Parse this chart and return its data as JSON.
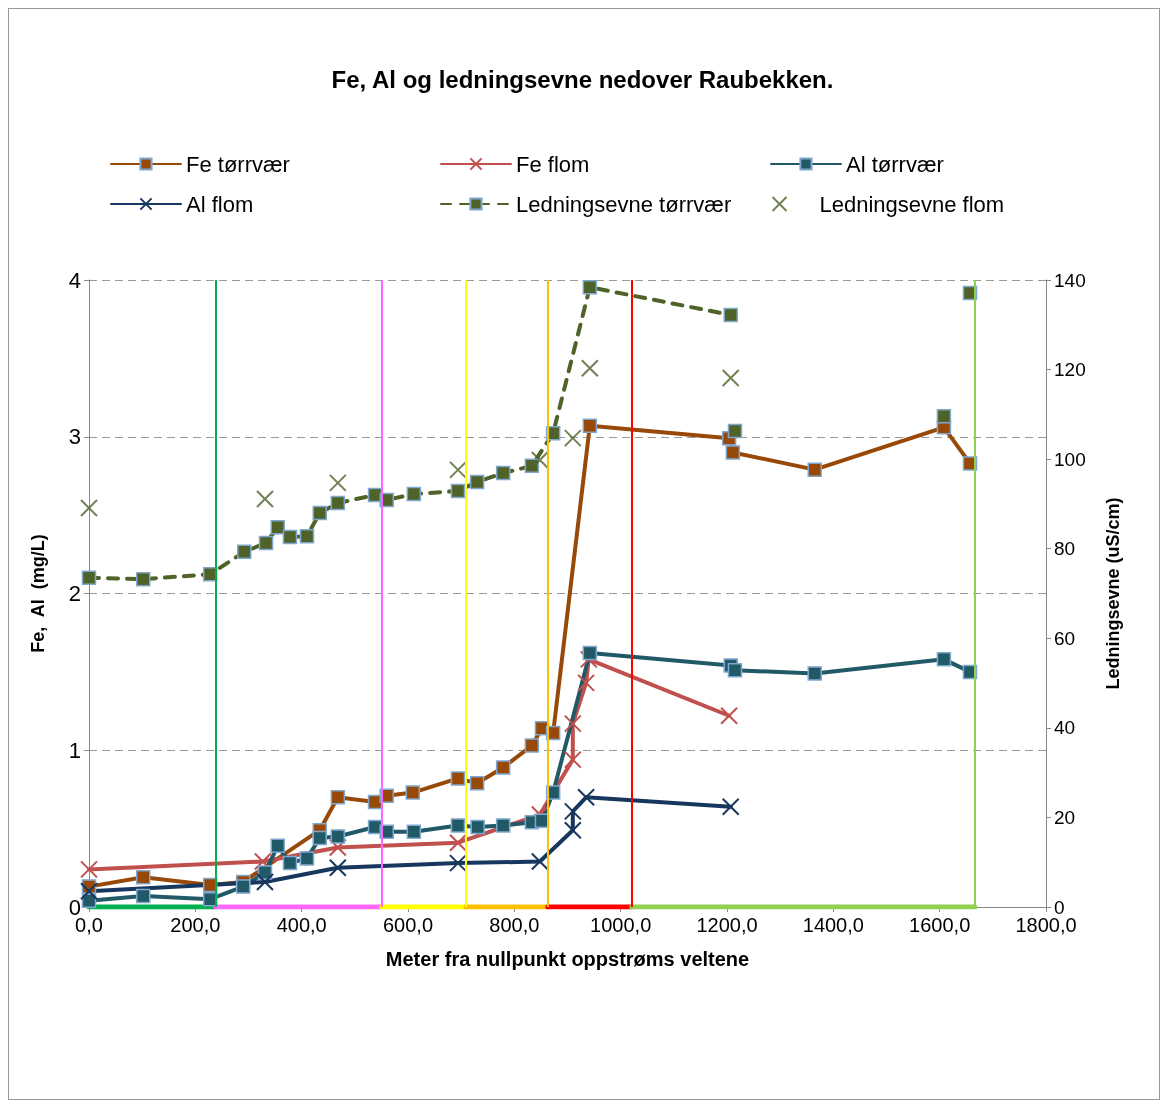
{
  "chart_data": {
    "type": "line",
    "title": "Fe, Al og ledningsevne nedover Raubekken.",
    "xlabel": "Meter fra nullpunkt oppstrøms veltene",
    "ylabel": "Fe,  Al  (mg/L)",
    "y2label": "Ledningsevne (uS/cm)",
    "xlim": [
      0,
      1800
    ],
    "xticks": [
      {
        "value": 0,
        "label": "0,0"
      },
      {
        "value": 200,
        "label": "200,0"
      },
      {
        "value": 400,
        "label": "400,0"
      },
      {
        "value": 600,
        "label": "600,0"
      },
      {
        "value": 800,
        "label": "800,0"
      },
      {
        "value": 1000,
        "label": "1000,0"
      },
      {
        "value": 1200,
        "label": "1200,0"
      },
      {
        "value": 1400,
        "label": "1400,0"
      },
      {
        "value": 1600,
        "label": "1600,0"
      },
      {
        "value": 1800,
        "label": "1800,0"
      }
    ],
    "ylim": [
      0,
      4
    ],
    "yticks": [
      0,
      1,
      2,
      3,
      4
    ],
    "y2lim": [
      0,
      140
    ],
    "y2ticks": [
      0,
      20,
      40,
      60,
      80,
      100,
      120,
      140
    ],
    "grid": "y",
    "legend": "top",
    "series": [
      {
        "name": "Fe tørrvær",
        "color": "#984807",
        "marker": "square",
        "line_style": "solid",
        "x": [
          0,
          102,
          228,
          290,
          434,
          468,
          538,
          560,
          609,
          694,
          730,
          779,
          833,
          852,
          873,
          942,
          1204,
          1211,
          1365,
          1608,
          1657
        ],
        "values": [
          0.13,
          0.19,
          0.14,
          0.16,
          0.49,
          0.7,
          0.67,
          0.71,
          0.73,
          0.82,
          0.79,
          0.89,
          1.03,
          1.14,
          1.11,
          3.07,
          2.99,
          2.9,
          2.79,
          3.06,
          2.83
        ]
      },
      {
        "name": "Fe flom",
        "color": "#c0504d",
        "marker": "cross",
        "line_style": "solid",
        "x": [
          0,
          327,
          468,
          694,
          848,
          910,
          910,
          935,
          940,
          1204
        ],
        "values": [
          0.24,
          0.29,
          0.38,
          0.41,
          0.59,
          0.94,
          1.17,
          1.43,
          1.58,
          1.22
        ]
      },
      {
        "name": "Al tørrvær",
        "color": "#215967",
        "marker": "square",
        "line_style": "solid",
        "x": [
          0,
          102,
          228,
          290,
          331,
          355,
          378,
          410,
          434,
          468,
          538,
          560,
          611,
          694,
          731,
          779,
          833,
          852,
          873,
          942,
          1207,
          1215,
          1365,
          1608,
          1657
        ],
        "values": [
          0.04,
          0.07,
          0.05,
          0.13,
          0.22,
          0.39,
          0.28,
          0.31,
          0.44,
          0.45,
          0.51,
          0.48,
          0.48,
          0.52,
          0.51,
          0.52,
          0.54,
          0.55,
          0.73,
          1.62,
          1.54,
          1.51,
          1.49,
          1.58,
          1.5
        ]
      },
      {
        "name": "Al flom",
        "color": "#17375e",
        "marker": "cross",
        "line_style": "solid",
        "x": [
          0,
          331,
          468,
          694,
          848,
          910,
          910,
          935,
          1207
        ],
        "values": [
          0.1,
          0.16,
          0.25,
          0.28,
          0.29,
          0.49,
          0.61,
          0.7,
          0.64
        ]
      },
      {
        "name": "Ledningsevne tørrvær",
        "color": "#4f6228",
        "marker": "square",
        "line_style": "dashed",
        "axis": "y2",
        "x": [
          0,
          102,
          228,
          292,
          333,
          355,
          378,
          410,
          434,
          468,
          538,
          560,
          611,
          694,
          730,
          779,
          833,
          873,
          942,
          1207,
          null,
          1215,
          null,
          1608,
          null,
          1657
        ],
        "values": [
          73.5,
          73.2,
          74.3,
          79.3,
          81.3,
          84.8,
          82.6,
          82.8,
          88,
          90.2,
          92,
          90.9,
          92.2,
          92.9,
          94.9,
          96.9,
          98.5,
          105.8,
          138.4,
          132.2,
          null,
          106.3,
          null,
          109.6,
          null,
          137.1
        ]
      },
      {
        "name": "Ledningsevne flom",
        "type": "scatter",
        "color": "#4f6228",
        "marker": "cross",
        "axis": "y2",
        "x": [
          0,
          331,
          468,
          694,
          848,
          910,
          942,
          1207
        ],
        "values": [
          89.1,
          91.1,
          94.7,
          97.6,
          99.8,
          104.7,
          120.3,
          118.1
        ]
      },
      {
        "color": "#00b050",
        "marker": "none",
        "line_style": "solid",
        "x": [
          0,
          239
        ],
        "values": [
          0,
          0
        ]
      },
      {
        "color": "#ff66ff",
        "marker": "none",
        "line_style": "solid",
        "x": [
          239,
          551
        ],
        "values": [
          0,
          0
        ]
      },
      {
        "color": "#ffff00",
        "marker": "none",
        "line_style": "solid",
        "x": [
          551,
          709
        ],
        "values": [
          0,
          0
        ]
      },
      {
        "color": "#ffc000",
        "marker": "none",
        "line_style": "solid",
        "x": [
          709,
          863
        ],
        "values": [
          0,
          0
        ]
      },
      {
        "color": "#ff0000",
        "marker": "none",
        "line_style": "solid",
        "x": [
          863,
          1021
        ],
        "values": [
          0,
          0
        ]
      },
      {
        "color": "#92d050",
        "marker": "none",
        "line_style": "solid",
        "x": [
          1021,
          1666
        ],
        "values": [
          0,
          0
        ]
      }
    ],
    "ref_lines": [
      {
        "axis": "x",
        "value": 239,
        "color": "#00b050"
      },
      {
        "axis": "x",
        "value": 551,
        "color": "#ff66ff"
      },
      {
        "axis": "x",
        "value": 709,
        "color": "#ffff00"
      },
      {
        "axis": "x",
        "value": 863,
        "color": "#ffc000"
      },
      {
        "axis": "x",
        "value": 1021,
        "color": "#ff0000"
      },
      {
        "axis": "x",
        "value": 1666,
        "color": "#92d050"
      }
    ]
  }
}
